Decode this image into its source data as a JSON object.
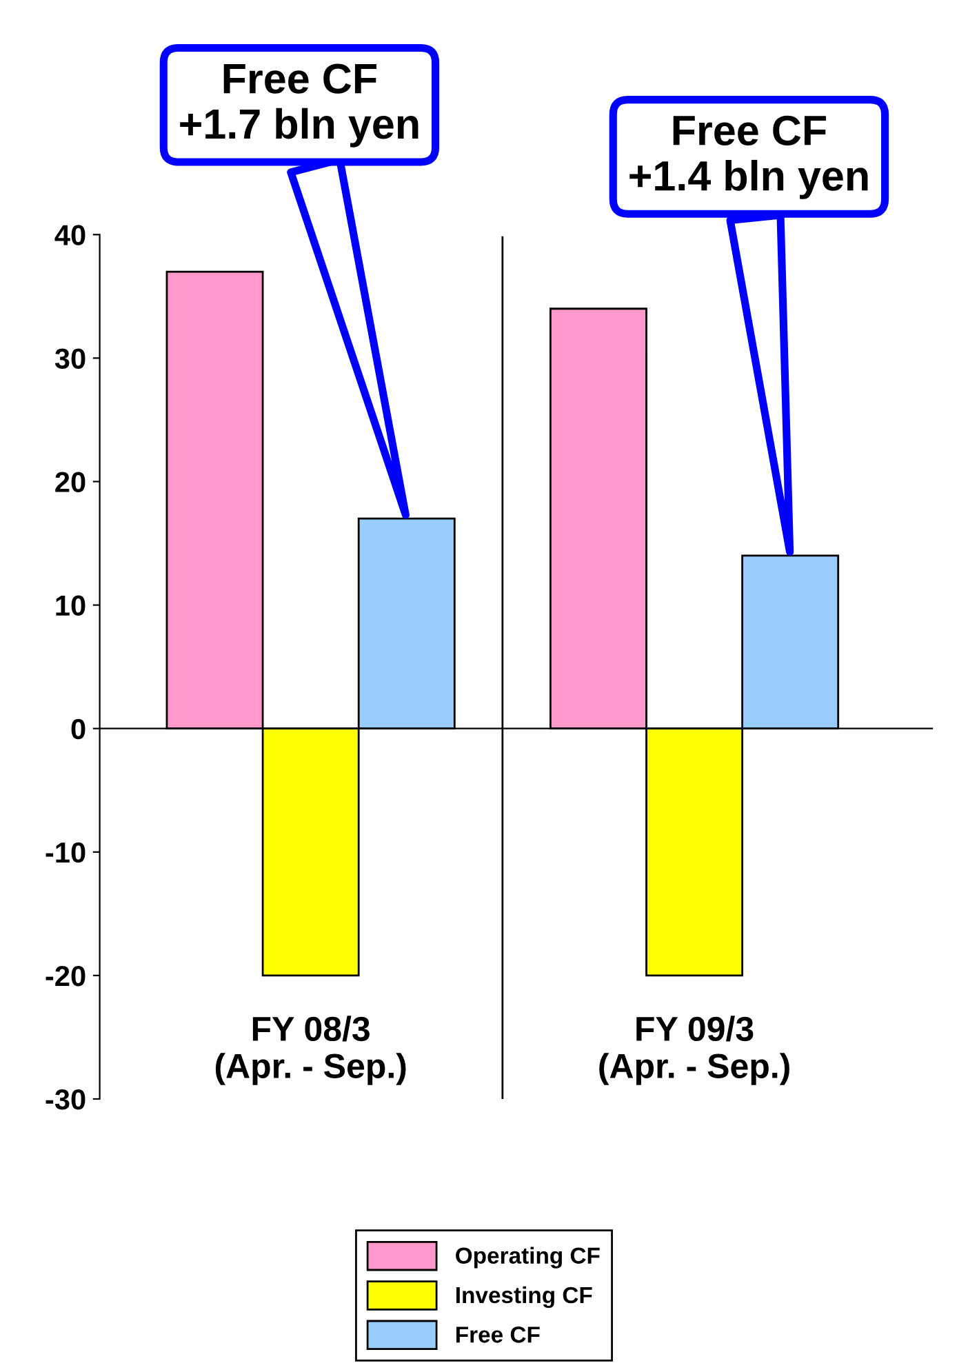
{
  "chart_data": {
    "type": "bar",
    "categories": [
      "FY 08/3\n(Apr. - Sep.)",
      "FY 09/3\n(Apr. - Sep.)"
    ],
    "series": [
      {
        "name": "Operating CF",
        "color": "#ff99cc",
        "values": [
          37,
          34
        ]
      },
      {
        "name": "Investing CF",
        "color": "#ffff00",
        "values": [
          -20,
          -20
        ]
      },
      {
        "name": "Free CF",
        "color": "#99ccff",
        "values": [
          17,
          14
        ]
      }
    ],
    "ylim": [
      -30,
      40
    ],
    "yticks": [
      -30,
      -20,
      -10,
      0,
      10,
      20,
      30,
      40
    ],
    "grid": false,
    "legend": "bottom",
    "annotations": [
      "Free CF\n+1.7 bln yen",
      "Free CF\n+1.4 bln yen"
    ]
  }
}
